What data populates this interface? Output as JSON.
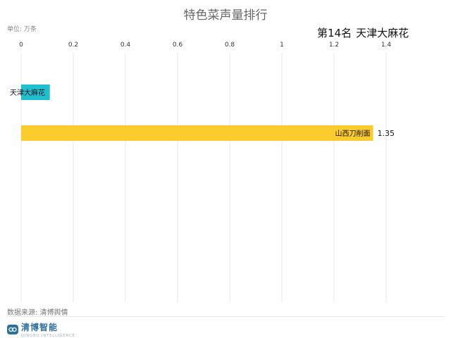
{
  "title": "特色菜声量排行",
  "unit_label": "单位: 万条",
  "rank_label": "第14名",
  "rank_name": "天津大麻花",
  "source_label": "数据来源: 清博舆情",
  "logo": {
    "text": "清博智能",
    "sub": "QINGBO INTELLIGENCE",
    "icon": "logo-icon",
    "color": "#2f6f9f"
  },
  "chart_data": {
    "type": "bar",
    "orientation": "horizontal",
    "title": "特色菜声量排行",
    "xlim": [
      0,
      1.4
    ],
    "x_ticks": [
      "0",
      "0.2",
      "0.4",
      "0.6",
      "0.8",
      "1",
      "1.2",
      "1.4"
    ],
    "grid": true,
    "categories": [
      "天津大麻花",
      "山西刀削面"
    ],
    "values": [
      0.11,
      1.35
    ],
    "value_labels": [
      "",
      "1.35"
    ],
    "colors": [
      "#1ec0cf",
      "#fccb2c"
    ]
  }
}
